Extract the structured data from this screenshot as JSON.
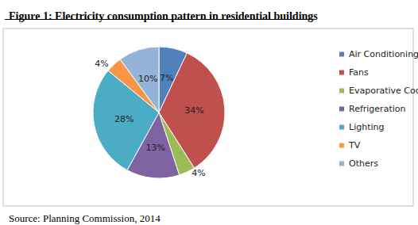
{
  "chart_data": {
    "type": "pie",
    "title": "Figure 1: Electricity consumption pattern in residential buildings",
    "source": "Source: Planning Commission, 2014",
    "categories": [
      "Air Conditioning",
      "Fans",
      "Evaporative Cooler",
      "Refrigeration",
      "Lighting",
      "TV",
      "Others"
    ],
    "values": [
      7,
      34,
      4,
      13,
      28,
      4,
      10
    ],
    "value_labels": [
      "7%",
      "34%",
      "4%",
      "13%",
      "28%",
      "4%",
      "10%"
    ],
    "colors": [
      "#4f81bd",
      "#c0504d",
      "#9bbb59",
      "#8064a2",
      "#4bacc6",
      "#f79646",
      "#95b3d7"
    ],
    "data_labels": true,
    "legend": "right"
  }
}
